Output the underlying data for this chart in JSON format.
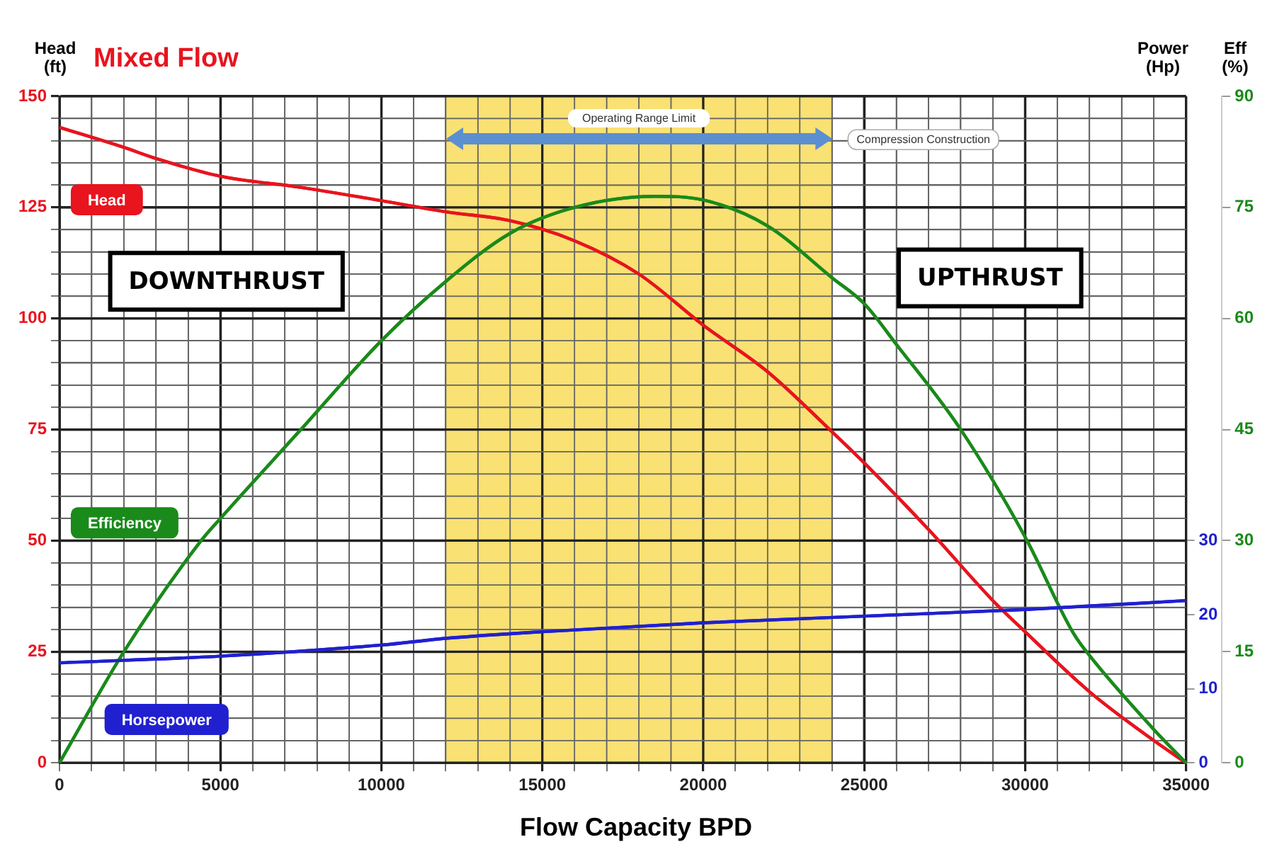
{
  "chart_data": {
    "type": "line",
    "title": "Mixed Flow",
    "xlabel": "Flow Capacity BPD",
    "ylabel": "Head (ft)",
    "y2label": "Power (Hp)",
    "y3label": "Eff (%)",
    "xlim": [
      0,
      35000
    ],
    "xticks": [
      0,
      {
        "value": 1000,
        "label": null
      },
      {
        "value": 2000,
        "label": null
      },
      {
        "value": 3000,
        "label": null
      },
      {
        "value": 4000,
        "label": null
      },
      5000,
      {
        "value": 6000,
        "label": null
      },
      {
        "value": 7000,
        "label": null
      },
      {
        "value": 8000,
        "label": null
      },
      {
        "value": 9000,
        "label": null
      },
      10000,
      {
        "value": 11000,
        "label": null
      },
      {
        "value": 12000,
        "label": null
      },
      {
        "value": 13000,
        "label": null
      },
      {
        "value": 14000,
        "label": null
      },
      15000,
      {
        "value": 16000,
        "label": null
      },
      {
        "value": 17000,
        "label": null
      },
      {
        "value": 18000,
        "label": null
      },
      {
        "value": 19000,
        "label": null
      },
      20000,
      {
        "value": 21000,
        "label": null
      },
      {
        "value": 22000,
        "label": null
      },
      {
        "value": 23000,
        "label": null
      },
      {
        "value": 24000,
        "label": null
      },
      25000,
      {
        "value": 26000,
        "label": null
      },
      {
        "value": 27000,
        "label": null
      },
      {
        "value": 28000,
        "label": null
      },
      {
        "value": 29000,
        "label": null
      },
      30000,
      {
        "value": 31000,
        "label": null
      },
      {
        "value": 32000,
        "label": null
      },
      {
        "value": 33000,
        "label": null
      },
      {
        "value": 34000,
        "label": null
      },
      35000
    ],
    "ylim": [
      0,
      150
    ],
    "yticks": [
      0,
      {
        "value": 5,
        "label": null
      },
      {
        "value": 10,
        "label": null
      },
      {
        "value": 15,
        "label": null
      },
      {
        "value": 20,
        "label": null
      },
      25,
      {
        "value": 30,
        "label": null
      },
      {
        "value": 35,
        "label": null
      },
      {
        "value": 40,
        "label": null
      },
      {
        "value": 45,
        "label": null
      },
      50,
      {
        "value": 55,
        "label": null
      },
      {
        "value": 60,
        "label": null
      },
      {
        "value": 65,
        "label": null
      },
      {
        "value": 70,
        "label": null
      },
      75,
      {
        "value": 80,
        "label": null
      },
      {
        "value": 85,
        "label": null
      },
      {
        "value": 90,
        "label": null
      },
      {
        "value": 95,
        "label": null
      },
      100,
      {
        "value": 105,
        "label": null
      },
      {
        "value": 110,
        "label": null
      },
      {
        "value": 115,
        "label": null
      },
      {
        "value": 120,
        "label": null
      },
      125,
      {
        "value": 130,
        "label": null
      },
      {
        "value": 135,
        "label": null
      },
      {
        "value": 140,
        "label": null
      },
      {
        "value": 145,
        "label": null
      },
      150
    ],
    "y2lim": [
      0,
      90
    ],
    "y2ticks": [
      0,
      10,
      20,
      30
    ],
    "y3lim": [
      0,
      90
    ],
    "y3ticks": [
      0,
      15,
      30,
      45,
      60,
      75,
      90
    ],
    "grid": true,
    "legend": false,
    "marker": "none",
    "line_style": "solid",
    "bands": [
      {
        "axis": "x",
        "from": 12000,
        "to": 24000,
        "label": "Operating Range Limit",
        "color": "#f8dc5a"
      }
    ],
    "annotations": [
      "DOWNTHRUST",
      "UPTHRUST",
      "Compression Construction"
    ],
    "series": [
      {
        "name": "Head",
        "color": "#e8141e",
        "x": [
          0,
          2000,
          3000,
          5000,
          7500,
          10000,
          12000,
          14000,
          16000,
          18000,
          20000,
          22000,
          24000,
          25000,
          27000,
          29000,
          30000,
          32000,
          34000,
          35000
        ],
        "values": [
          143,
          138.5,
          136,
          132,
          129.5,
          126.5,
          124,
          122,
          117.5,
          110,
          98.5,
          88,
          74.5,
          67.5,
          52.5,
          36.5,
          29.5,
          16,
          5,
          0
        ]
      },
      {
        "name": "Efficiency",
        "color": "#1a8a1a",
        "axis": "y3",
        "x": [
          0,
          2000,
          4400,
          5000,
          7500,
          10000,
          12000,
          14000,
          16000,
          18500,
          20000,
          22000,
          24000,
          25000,
          26000,
          28000,
          30000,
          31500,
          32000,
          34000,
          35000
        ],
        "values": [
          0,
          15,
          30,
          33,
          45,
          57,
          65,
          71.5,
          75,
          76.5,
          76,
          72.5,
          65.5,
          62,
          56.5,
          45,
          30.5,
          17.5,
          14.5,
          4.5,
          0
        ]
      },
      {
        "name": "Horsepower",
        "color": "#2020d0",
        "axis": "y2",
        "x": [
          0,
          5000,
          10000,
          12000,
          15000,
          20000,
          25000,
          30000,
          35000
        ],
        "values": [
          13.5,
          14.4,
          15.9,
          16.8,
          17.7,
          18.9,
          19.8,
          20.7,
          21.9
        ]
      }
    ]
  }
}
